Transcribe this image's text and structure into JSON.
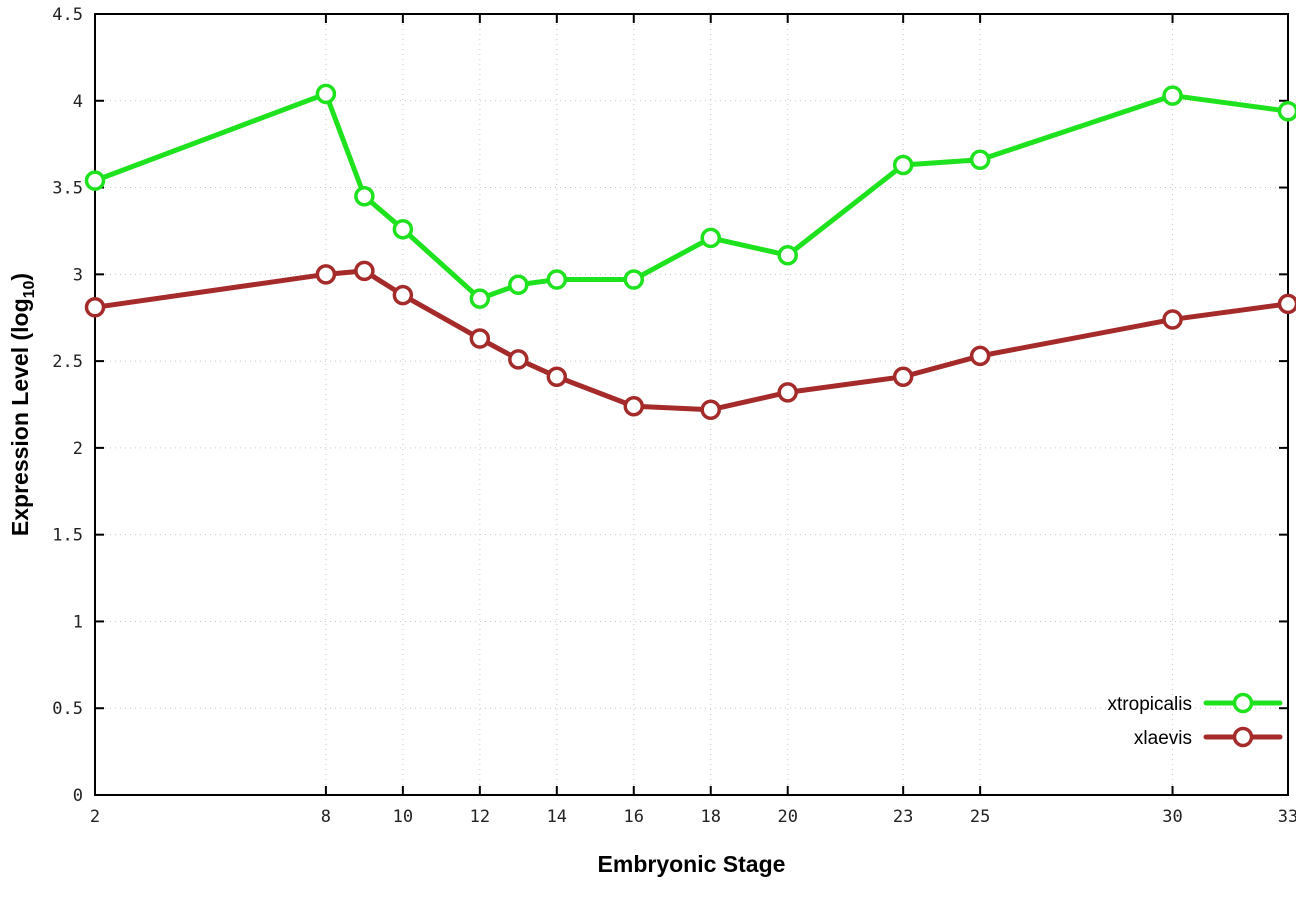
{
  "chart_data": {
    "type": "line",
    "title": "",
    "xlabel": "Embryonic Stage",
    "ylabel": "Expression Level (log10)",
    "ylabel_parts": {
      "main": "Expression Level (log",
      "sub": "10",
      "end": ")"
    },
    "x": [
      2,
      8,
      9,
      10,
      12,
      13,
      14,
      16,
      18,
      20,
      23,
      25,
      30,
      33
    ],
    "xlim": [
      2,
      33
    ],
    "ylim": [
      0,
      4.5
    ],
    "x_ticks": [
      2,
      8,
      10,
      12,
      14,
      16,
      18,
      20,
      23,
      25,
      30,
      33
    ],
    "y_ticks": [
      0,
      0.5,
      1,
      1.5,
      2,
      2.5,
      3,
      3.5,
      4,
      4.5
    ],
    "grid": true,
    "legend_position": "bottom-right",
    "series": [
      {
        "name": "xtropicalis",
        "color": "#1de21d",
        "values": [
          3.54,
          4.04,
          3.45,
          3.26,
          2.86,
          2.94,
          2.97,
          2.97,
          3.21,
          3.11,
          3.63,
          3.66,
          4.03,
          3.94
        ]
      },
      {
        "name": "xlaevis",
        "color": "#a52a2a",
        "values": [
          2.81,
          3.0,
          3.02,
          2.88,
          2.63,
          2.51,
          2.41,
          2.24,
          2.22,
          2.32,
          2.41,
          2.53,
          2.74,
          2.83
        ]
      }
    ],
    "colors": {
      "background": "#ffffff",
      "border": "#000000",
      "grid": "#c8c8c8"
    }
  }
}
